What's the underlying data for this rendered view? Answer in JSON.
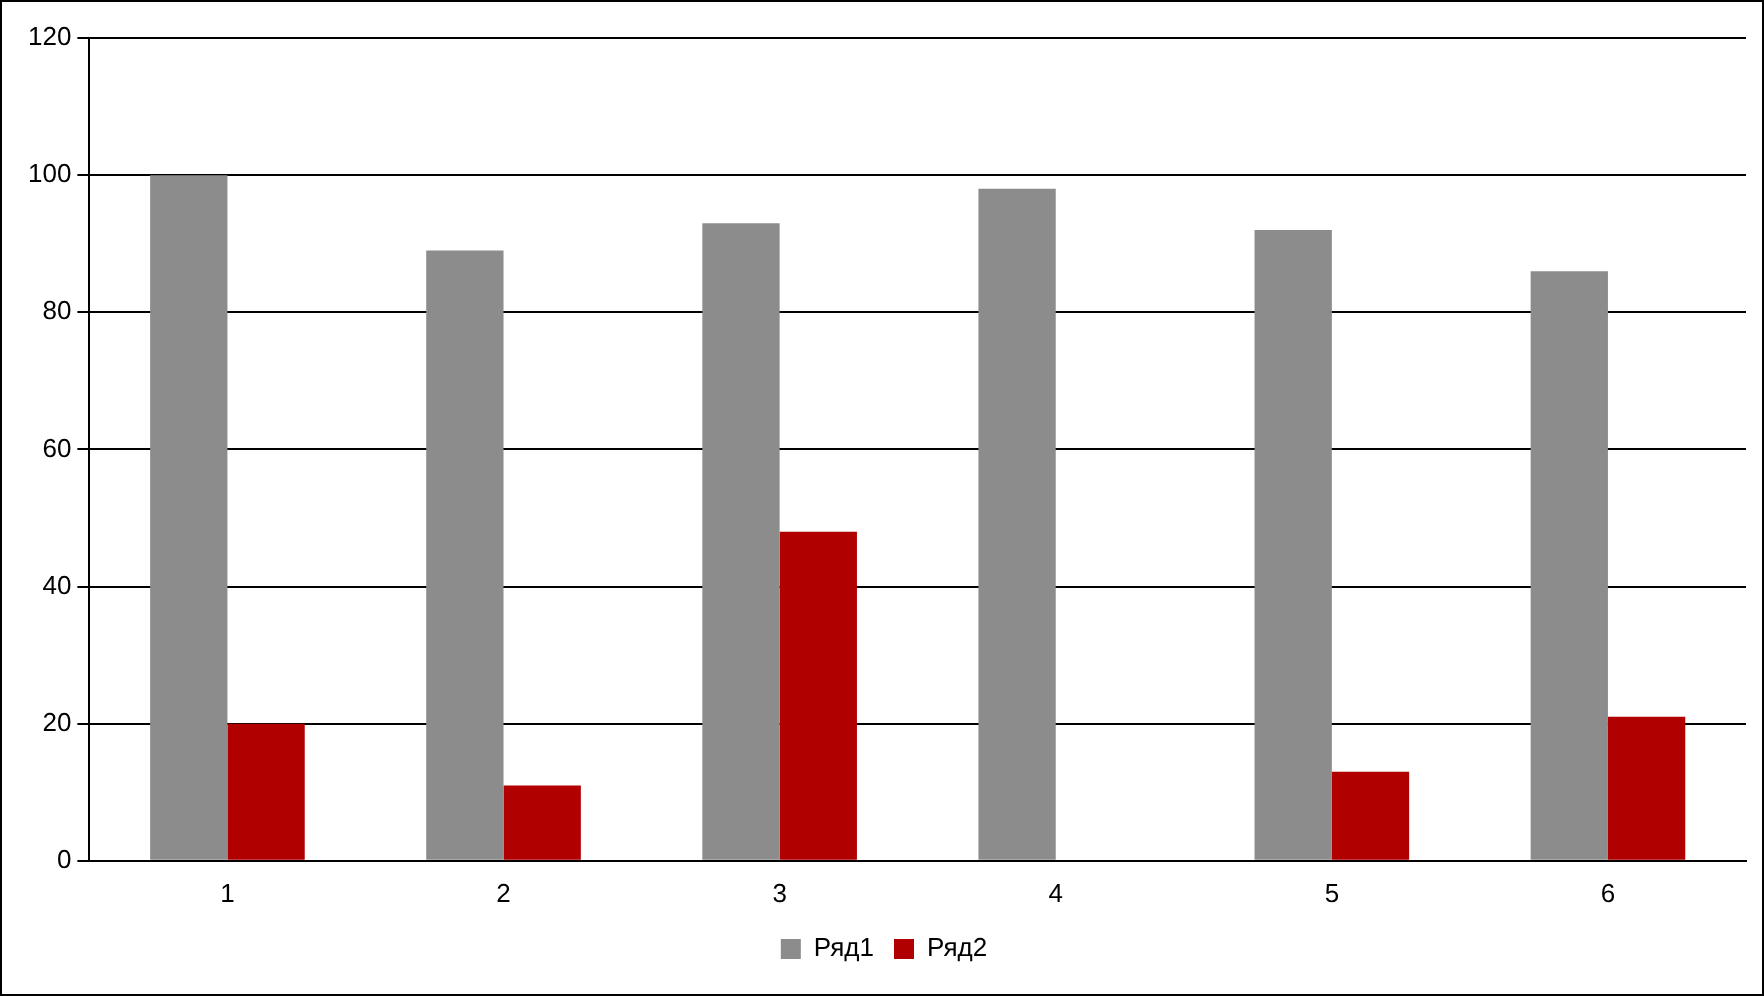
{
  "chart_data": {
    "type": "bar",
    "categories": [
      "1",
      "2",
      "3",
      "4",
      "5",
      "6"
    ],
    "series": [
      {
        "name": "Ряд1",
        "color": "#8c8c8c",
        "values": [
          100,
          89,
          93,
          98,
          92,
          86
        ]
      },
      {
        "name": "Ряд2",
        "color": "#b00000",
        "values": [
          20,
          11,
          48,
          0,
          13,
          21
        ]
      }
    ],
    "ylim": [
      0,
      120
    ],
    "yticks": [
      0,
      20,
      40,
      60,
      80,
      100,
      120
    ],
    "grid": "y",
    "legend": "bottom"
  }
}
